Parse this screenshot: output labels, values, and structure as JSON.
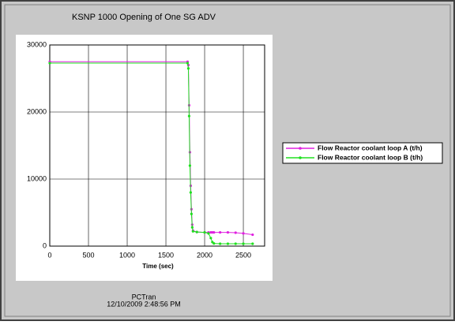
{
  "chart_data": {
    "type": "line",
    "title": "KSNP 1000 Opening of One SG ADV",
    "xlabel": "Time (sec)",
    "footer": [
      "PCTran",
      "12/10/2009 2:48:56 PM"
    ],
    "x": [
      0,
      1780,
      1790,
      1800,
      1810,
      1820,
      1830,
      1840,
      1850,
      1900,
      2000,
      2050,
      2080,
      2100,
      2120,
      2200,
      2300,
      2400,
      2500,
      2620
    ],
    "series": [
      {
        "name": "Flow Reactor coolant loop A (t/h)",
        "color": "#e020e0",
        "values": [
          27500,
          27500,
          27000,
          21000,
          14000,
          9000,
          5500,
          3200,
          2300,
          2100,
          2050,
          2050,
          2050,
          2050,
          2050,
          2050,
          2050,
          2000,
          1900,
          1700
        ]
      },
      {
        "name": "Flow Reactor coolant loop B (t/h)",
        "color": "#20e020",
        "values": [
          27300,
          27300,
          26500,
          19400,
          12000,
          8000,
          4800,
          2800,
          2200,
          2100,
          2050,
          1900,
          1200,
          600,
          400,
          350,
          350,
          350,
          350,
          350
        ]
      }
    ],
    "xlim": [
      0,
      2775
    ],
    "ylim": [
      0,
      30000
    ],
    "xticks": [
      0,
      500,
      1000,
      1500,
      2000,
      2500
    ],
    "yticks": [
      0,
      10000,
      20000,
      30000
    ],
    "grid": true
  }
}
